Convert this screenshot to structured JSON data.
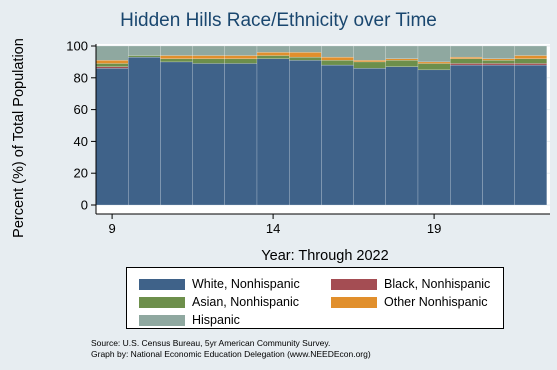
{
  "chart_data": {
    "type": "bar",
    "stacked": true,
    "title": "Hidden Hills Race/Ethnicity over Time",
    "xlabel": "Year: Through 2022",
    "ylabel": "Percent (%) of Total Population",
    "ylim": [
      0,
      100
    ],
    "yticks": [
      0,
      20,
      40,
      60,
      80,
      100
    ],
    "xticks": [
      9,
      14,
      19
    ],
    "x": [
      9,
      10,
      11,
      12,
      13,
      14,
      15,
      16,
      17,
      18,
      19,
      20,
      21,
      22
    ],
    "series": [
      {
        "name": "White, Nonhispanic",
        "color": "#3f6289",
        "values": [
          86,
          93,
          90,
          89,
          89,
          92,
          91,
          88,
          86,
          87,
          85,
          88,
          88,
          88
        ]
      },
      {
        "name": "Black, Nonhispanic",
        "color": "#a44d53",
        "values": [
          1,
          0,
          0,
          0,
          0,
          0,
          0,
          0,
          0,
          0,
          0,
          1,
          1,
          1
        ]
      },
      {
        "name": "Asian, Nonhispanic",
        "color": "#6d8f4b",
        "values": [
          2,
          1,
          2,
          3,
          3,
          2,
          2,
          3,
          4,
          4,
          4,
          3,
          2,
          3
        ]
      },
      {
        "name": "Other Nonhispanic",
        "color": "#e18f2c",
        "values": [
          2,
          0,
          2,
          2,
          2,
          2,
          3,
          2,
          1,
          1,
          1,
          1,
          1,
          2
        ]
      },
      {
        "name": "Hispanic",
        "color": "#8fa8a0",
        "values": [
          9,
          6,
          6,
          6,
          6,
          4,
          4,
          7,
          9,
          8,
          10,
          7,
          8,
          6
        ]
      }
    ],
    "grid": true,
    "legend_position": "bottom"
  },
  "source_lines": [
    "Source:  U.S. Census Bureau, 5yr American Community Survey.",
    "Graph by: National Economic Education Delegation (www.NEEDEcon.org)"
  ]
}
